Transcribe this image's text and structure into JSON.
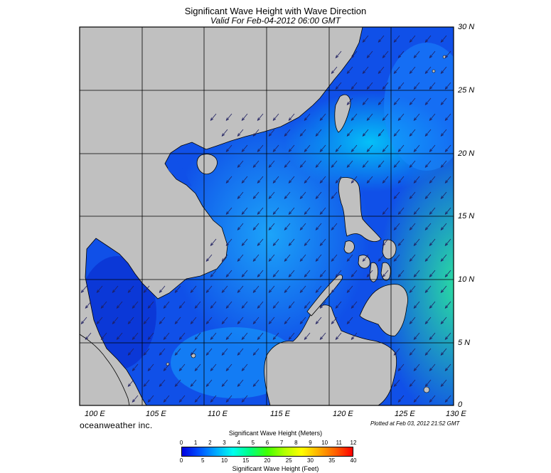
{
  "title": "Significant Wave Height with Wave Direction",
  "subtitle": "Valid For Feb-04-2012 06:00 GMT",
  "lon_labels": [
    "100 E",
    "105 E",
    "110 E",
    "115 E",
    "120 E",
    "125 E",
    "130 E"
  ],
  "lat_labels": [
    "30 N",
    "25 N",
    "20 N",
    "15 N",
    "10 N",
    "5 N",
    "0"
  ],
  "map_extent": {
    "lon_min": 100,
    "lon_max": 130,
    "lat_min": 0,
    "lat_max": 30
  },
  "brand": "oceanweather inc.",
  "plotted_text": "Plotted at Feb 03, 2012 21:52 GMT",
  "colorbar": {
    "top_title": "Significant Wave Height (Meters)",
    "meter_ticks": [
      "0",
      "1",
      "2",
      "3",
      "4",
      "5",
      "6",
      "7",
      "8",
      "9",
      "10",
      "11",
      "12"
    ],
    "feet_ticks": [
      "0",
      "5",
      "10",
      "15",
      "20",
      "25",
      "30",
      "35",
      "40"
    ],
    "bottom_title": "Significant Wave Height (Feet)",
    "colors": [
      "#0000e0",
      "#0050ff",
      "#00aaff",
      "#00ffee",
      "#00ff80",
      "#40ff00",
      "#b0ff00",
      "#ffff00",
      "#ffb000",
      "#ff6000",
      "#ff0000"
    ]
  },
  "colors": {
    "land": "#c0c0c0",
    "sea_base": "#1050e8",
    "grid": "#000000"
  },
  "wave_direction": "from northeast"
}
